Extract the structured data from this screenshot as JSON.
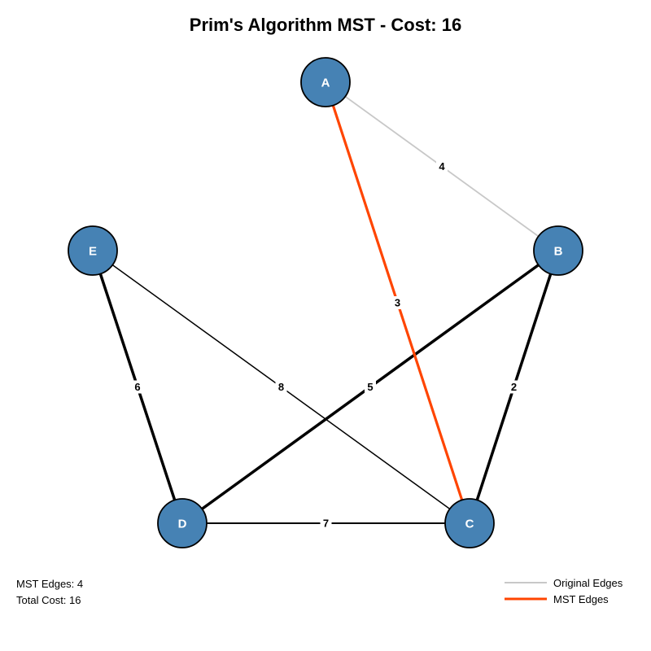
{
  "title": "Prim's Algorithm MST - Cost: 16",
  "colors": {
    "node_fill": "#4682b4",
    "node_stroke": "#000000",
    "original_edge": "#c8c8c8",
    "mst_edge": "#ff4500",
    "black_edge": "#000000"
  },
  "nodes": [
    {
      "id": "A",
      "label": "A"
    },
    {
      "id": "B",
      "label": "B"
    },
    {
      "id": "C",
      "label": "C"
    },
    {
      "id": "D",
      "label": "D"
    },
    {
      "id": "E",
      "label": "E"
    }
  ],
  "edges": [
    {
      "from": "A",
      "to": "B",
      "weight": "4",
      "style": "original"
    },
    {
      "from": "A",
      "to": "C",
      "weight": "3",
      "style": "mst"
    },
    {
      "from": "B",
      "to": "C",
      "weight": "2",
      "style": "thick"
    },
    {
      "from": "B",
      "to": "D",
      "weight": "5",
      "style": "thick"
    },
    {
      "from": "E",
      "to": "D",
      "weight": "6",
      "style": "thick"
    },
    {
      "from": "E",
      "to": "C",
      "weight": "8",
      "style": "thin"
    },
    {
      "from": "D",
      "to": "C",
      "weight": "7",
      "style": "medium"
    }
  ],
  "stats": {
    "mst_edges": "MST Edges: 4",
    "total_cost": "Total Cost: 16"
  },
  "legend": {
    "original": "Original Edges",
    "mst": "MST Edges"
  }
}
